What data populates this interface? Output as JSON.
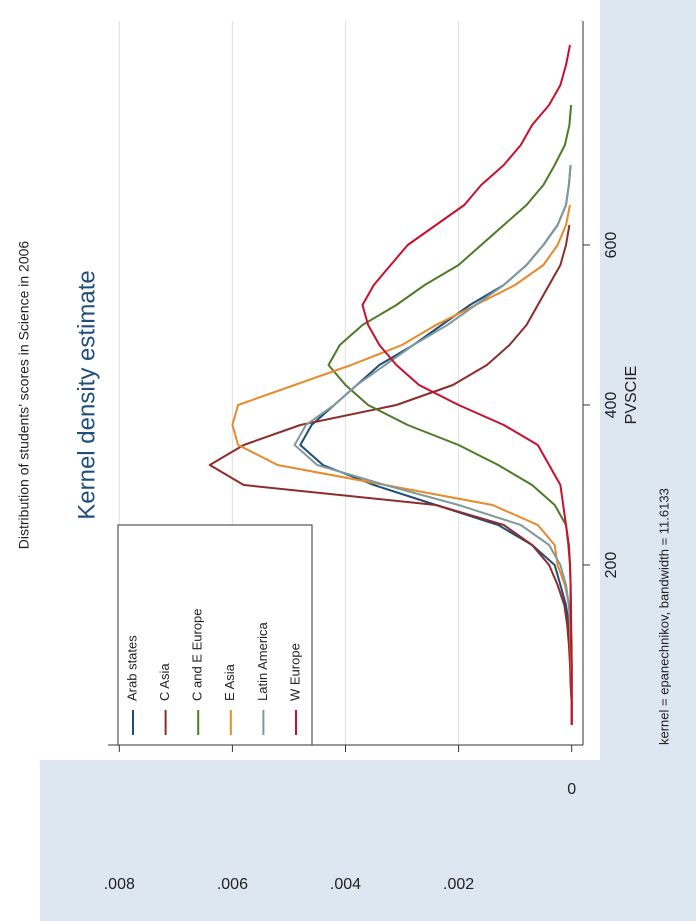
{
  "caption": "Distribution of students’ scores in Science in 2006",
  "chart_data": {
    "type": "line",
    "title": "Kernel density estimate",
    "x_label": "PVSCIE",
    "note": "kernel = epanechnikov, bandwidth = 11.6133",
    "x": [
      0,
      25,
      50,
      75,
      100,
      125,
      150,
      175,
      200,
      225,
      250,
      275,
      300,
      325,
      350,
      375,
      400,
      425,
      450,
      475,
      500,
      525,
      550,
      575,
      600,
      625,
      650,
      675,
      700,
      725,
      750,
      775,
      800,
      825,
      850
    ],
    "series": [
      {
        "name": "Arab states",
        "color": "#1f4e79",
        "values": [
          0,
          0,
          1e-05,
          1e-05,
          2e-05,
          5e-05,
          0.0001,
          0.0002,
          0.0003,
          0.0007,
          0.0013,
          0.0024,
          0.0035,
          0.0044,
          0.0048,
          0.0046,
          0.0042,
          0.0038,
          0.0034,
          0.0028,
          0.0023,
          0.0018,
          0.0012,
          0.0008,
          0.0005,
          0.00025,
          0.0001,
          5e-05,
          2e-05,
          null,
          null,
          null,
          null,
          null,
          null
        ]
      },
      {
        "name": "C Asia",
        "color": "#8c2d2d",
        "values": [
          0,
          0,
          2e-05,
          3e-05,
          5e-05,
          8e-05,
          0.00013,
          0.00025,
          0.0004,
          0.0007,
          0.0012,
          0.0024,
          0.0058,
          0.0064,
          0.0058,
          0.0048,
          0.0031,
          0.0021,
          0.0015,
          0.0011,
          0.0008,
          0.0006,
          0.0004,
          0.0002,
          0.0001,
          4e-05,
          null,
          null,
          null,
          null,
          null,
          null,
          null,
          null,
          null
        ]
      },
      {
        "name": "C and E Europe",
        "color": "#4f7a28",
        "values": [
          0,
          0,
          0,
          0,
          0,
          1e-05,
          1e-05,
          2e-05,
          3e-05,
          6e-05,
          0.0001,
          0.0003,
          0.0007,
          0.0013,
          0.002,
          0.0029,
          0.0036,
          0.004,
          0.0043,
          0.0041,
          0.0037,
          0.0031,
          0.0026,
          0.002,
          0.0016,
          0.0012,
          0.0008,
          0.0005,
          0.0003,
          0.00012,
          4e-05,
          1e-05,
          null,
          null,
          null
        ]
      },
      {
        "name": "E Asia",
        "color": "#e8892a",
        "values": [
          0,
          0,
          0,
          1e-05,
          2e-05,
          3e-05,
          5e-05,
          0.00012,
          0.00025,
          0.0003,
          0.0006,
          0.0014,
          0.0033,
          0.0052,
          0.0059,
          0.006,
          0.0059,
          0.0049,
          0.0039,
          0.003,
          0.0024,
          0.0017,
          0.001,
          0.0005,
          0.00025,
          0.0001,
          3e-05,
          null,
          null,
          null,
          null,
          null,
          null,
          null,
          null
        ]
      },
      {
        "name": "Latin America",
        "color": "#7f9a9a",
        "values": [
          0,
          0,
          0,
          0,
          1e-05,
          2e-05,
          5e-05,
          0.0001,
          0.0002,
          0.0004,
          0.0009,
          0.002,
          0.0033,
          0.0045,
          0.0049,
          0.0047,
          0.0042,
          0.0038,
          0.0033,
          0.0028,
          0.0022,
          0.0017,
          0.0012,
          0.0008,
          0.0005,
          0.00025,
          0.0001,
          5e-05,
          2e-05,
          null,
          null,
          null,
          null,
          null,
          null
        ]
      },
      {
        "name": "W Europe",
        "color": "#c8102e",
        "values": [
          0,
          0,
          0,
          0,
          1e-05,
          1e-05,
          2e-05,
          2e-05,
          3e-05,
          5e-05,
          0.0001,
          0.00015,
          0.0002,
          0.0004,
          0.0006,
          0.0012,
          0.002,
          0.0027,
          0.0031,
          0.0034,
          0.0036,
          0.0037,
          0.0035,
          0.0032,
          0.0029,
          0.0024,
          0.0019,
          0.0016,
          0.0012,
          0.0009,
          0.0007,
          0.0004,
          0.0002,
          0.0001,
          3e-05
        ]
      }
    ],
    "xlim": [
      -25,
      880
    ],
    "xticks": [
      200,
      400,
      600
    ],
    "ylim": [
      -0.0002,
      0.0082
    ],
    "yticks": [
      0,
      {
        "value": 0.002,
        "label": ".002"
      },
      {
        "value": 0.004,
        "label": ".004"
      },
      {
        "value": 0.006,
        "label": ".006"
      },
      {
        "value": 0.008,
        "label": ".008"
      }
    ],
    "grid": true
  }
}
